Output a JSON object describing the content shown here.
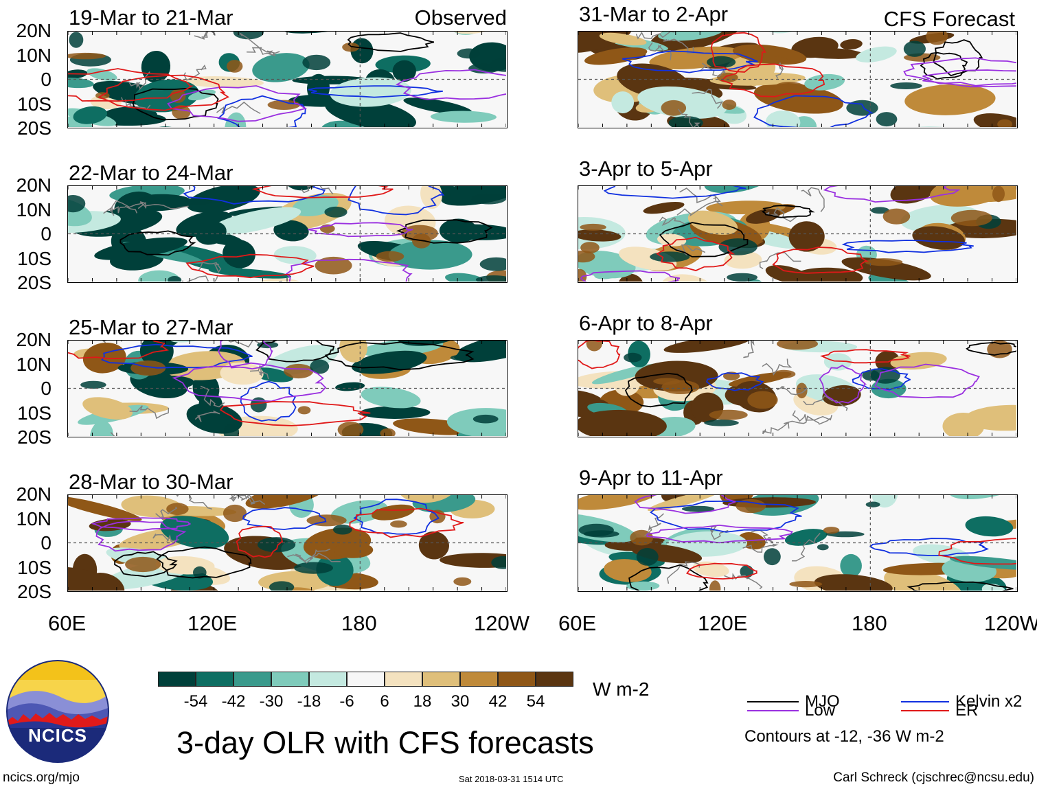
{
  "chart_data": {
    "type": "heatmap",
    "title": "3-day OLR with CFS forecasts",
    "variable": "OLR anomaly",
    "units": "W m-2",
    "latitude_ticks": [
      "20N",
      "10N",
      "0",
      "10S",
      "20S"
    ],
    "longitude_ticks": [
      "60E",
      "120E",
      "180",
      "120W"
    ],
    "lat_range": [
      -20,
      20
    ],
    "lon_range": [
      60,
      240
    ],
    "observed_label": "Observed",
    "forecast_label": "CFS Forecast",
    "panels_observed": [
      {
        "period": "19-Mar to 21-Mar"
      },
      {
        "period": "22-Mar to 24-Mar"
      },
      {
        "period": "25-Mar to 27-Mar"
      },
      {
        "period": "28-Mar to 30-Mar"
      }
    ],
    "panels_forecast": [
      {
        "period": "31-Mar to 2-Apr"
      },
      {
        "period": "3-Apr to 5-Apr"
      },
      {
        "period": "6-Apr to 8-Apr"
      },
      {
        "period": "9-Apr to 11-Apr"
      }
    ],
    "colorbar": {
      "labels": [
        "-54",
        "-42",
        "-30",
        "-18",
        "-6",
        "6",
        "18",
        "30",
        "42",
        "54"
      ],
      "colors": [
        "#00403a",
        "#0e6e62",
        "#3a9a8c",
        "#7fcbbb",
        "#c4e9e0",
        "#f7f7f7",
        "#f4e2bf",
        "#dfbf7a",
        "#bf8a3a",
        "#8f5717",
        "#5a3511"
      ],
      "units": "W m-2"
    },
    "contours": {
      "series": [
        {
          "name": "MJO",
          "color": "#000000"
        },
        {
          "name": "Kelvin x2",
          "color": "#1030e0"
        },
        {
          "name": "Low",
          "color": "#9a30e0"
        },
        {
          "name": "ER",
          "color": "#e01818"
        }
      ],
      "note": "Contours at -12, -36 W m-2"
    }
  },
  "logo": {
    "text": "NCICS"
  },
  "footer": {
    "url": "ncics.org/mjo",
    "timestamp": "Sat 2018-03-31 1514 UTC",
    "credit": "Carl Schreck (cjschrec@ncsu.edu)"
  }
}
